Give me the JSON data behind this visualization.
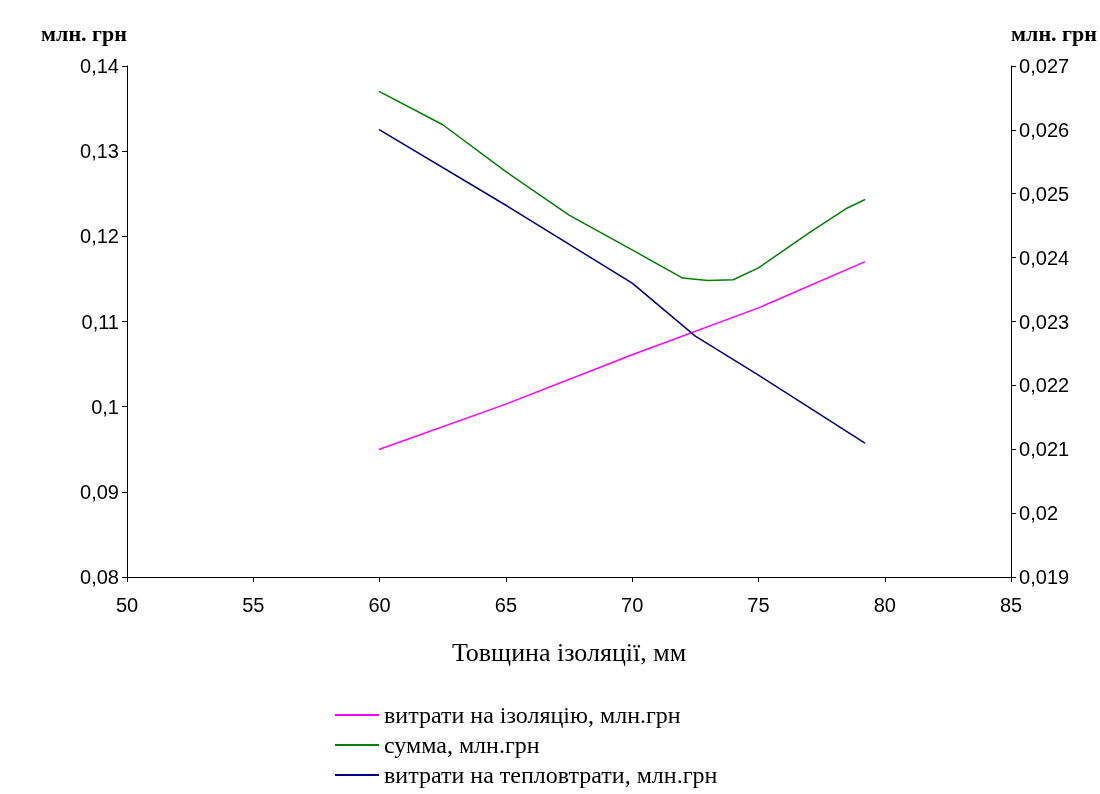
{
  "chart_data": {
    "type": "line",
    "xlabel": "Товщина ізоляції, мм",
    "ylabel": "млн. грн",
    "y2label": "млн. грн",
    "xlim": [
      50,
      85
    ],
    "xticks": [
      50,
      55,
      60,
      65,
      70,
      75,
      80,
      85
    ],
    "ylim": [
      0.08,
      0.14
    ],
    "yticks": [
      {
        "value": 0.08,
        "label": "0,08"
      },
      {
        "value": 0.09,
        "label": "0,09"
      },
      {
        "value": 0.1,
        "label": "0,1"
      },
      {
        "value": 0.11,
        "label": "0,11"
      },
      {
        "value": 0.12,
        "label": "0,12"
      },
      {
        "value": 0.13,
        "label": "0,13"
      },
      {
        "value": 0.14,
        "label": "0,14"
      }
    ],
    "y2lim": [
      0.019,
      0.027
    ],
    "y2ticks": [
      {
        "value": 0.019,
        "label": "0,019"
      },
      {
        "value": 0.02,
        "label": "0,02"
      },
      {
        "value": 0.021,
        "label": "0,021"
      },
      {
        "value": 0.022,
        "label": "0,022"
      },
      {
        "value": 0.023,
        "label": "0,023"
      },
      {
        "value": 0.024,
        "label": "0,024"
      },
      {
        "value": 0.025,
        "label": "0,025"
      },
      {
        "value": 0.026,
        "label": "0,026"
      },
      {
        "value": 0.027,
        "label": "0,027"
      }
    ],
    "series": [
      {
        "name": "витрати на ізоляцію, млн.грн",
        "color": "#ff00ff",
        "x": [
          60,
          65,
          70,
          75,
          79.2
        ],
        "values": [
          0.095,
          0.1003,
          0.1061,
          0.1116,
          0.117
        ]
      },
      {
        "name": "сумма, млн.грн",
        "color": "#008000",
        "x": [
          60,
          62.5,
          65,
          67.5,
          70,
          72,
          73,
          74,
          75,
          77,
          78.5,
          79.2
        ],
        "values": [
          0.137,
          0.1331,
          0.1276,
          0.1225,
          0.1184,
          0.1151,
          0.1148,
          0.1149,
          0.1163,
          0.1204,
          0.1233,
          0.1243
        ]
      },
      {
        "name": "витрати на тепловтрати, млн.грн",
        "color": "#000080",
        "axis": "y2",
        "x": [
          60,
          65,
          70,
          72.5,
          75,
          79.2
        ],
        "values": [
          0.026,
          0.02482,
          0.0236,
          0.02277,
          0.02216,
          0.0211
        ]
      }
    ],
    "grid": false,
    "legend": "bottom",
    "marker": "none",
    "line_style": "solid"
  }
}
